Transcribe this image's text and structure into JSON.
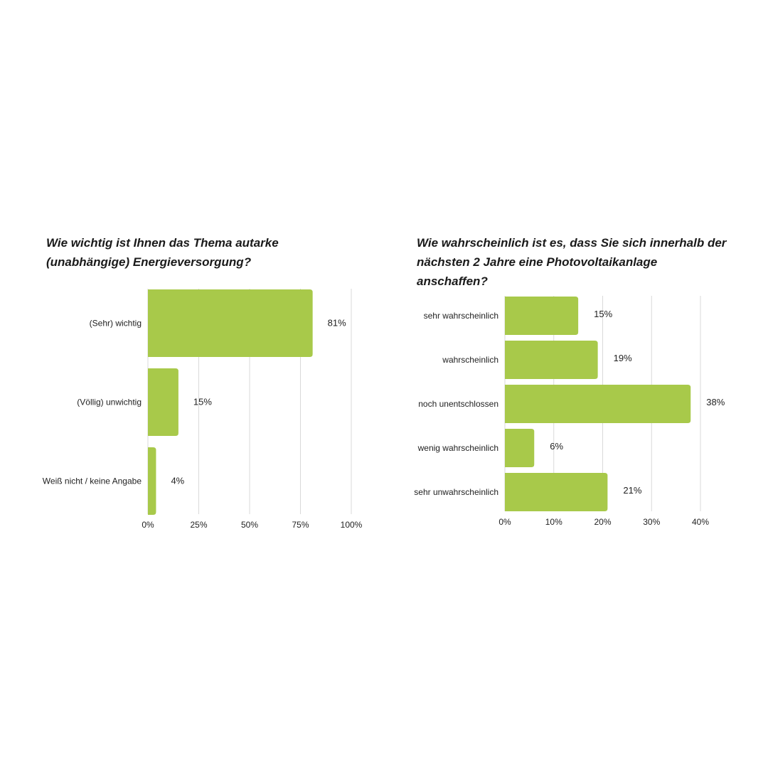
{
  "chart_data": [
    {
      "type": "bar",
      "orientation": "horizontal",
      "title": "Wie wichtig ist Ihnen das Thema autarke (unabhängige) Energieversorgung?",
      "categories": [
        "(Sehr) wichtig",
        "(Völlig) unwichtig",
        "Weiß nicht / keine Angabe"
      ],
      "values": [
        81,
        15,
        4
      ],
      "value_labels": [
        "81%",
        "15%",
        "4%"
      ],
      "xlim": [
        0,
        100
      ],
      "ticks": [
        0,
        25,
        50,
        75,
        100
      ],
      "tick_labels": [
        "0%",
        "25%",
        "50%",
        "75%",
        "100%"
      ],
      "grid": true,
      "bar_color": "#a8c94a"
    },
    {
      "type": "bar",
      "orientation": "horizontal",
      "title": "Wie wahrscheinlich ist es, dass Sie sich innerhalb der nächsten 2 Jahre eine Photovoltaikanlage anschaffen?",
      "categories": [
        "sehr wahrscheinlich",
        "wahrscheinlich",
        "noch unentschlossen",
        "wenig wahrscheinlich",
        "sehr unwahrscheinlich"
      ],
      "values": [
        15,
        19,
        38,
        6,
        21
      ],
      "value_labels": [
        "15%",
        "19%",
        "38%",
        "6%",
        "21%"
      ],
      "xlim": [
        0,
        40
      ],
      "ticks": [
        0,
        10,
        20,
        30,
        40
      ],
      "tick_labels": [
        "0%",
        "10%",
        "20%",
        "30%",
        "40%"
      ],
      "grid": true,
      "bar_color": "#a8c94a"
    }
  ]
}
